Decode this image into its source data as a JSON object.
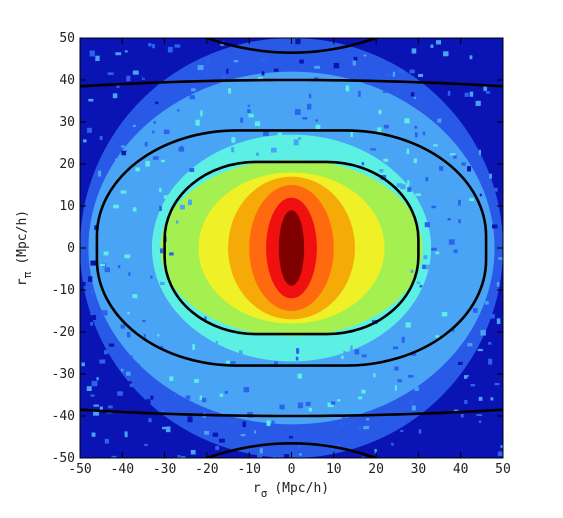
{
  "chart_data": {
    "type": "heatmap",
    "title": "",
    "xlabel": {
      "main": "r",
      "sub": "σ",
      "unit": "(Mpc/h)"
    },
    "ylabel": {
      "main": "r",
      "sub": "π",
      "unit": "(Mpc/h)"
    },
    "xlim": [
      -50,
      50
    ],
    "ylim": [
      -50,
      50
    ],
    "xticks": [
      -50,
      -40,
      -30,
      -20,
      -10,
      0,
      10,
      20,
      30,
      40,
      50
    ],
    "yticks": [
      -50,
      -40,
      -30,
      -20,
      -10,
      0,
      10,
      20,
      30,
      40,
      50
    ],
    "grid": false,
    "legend": "none",
    "colors": [
      "#0a14b4",
      "#2c62ec",
      "#4aa4f6",
      "#5cf0e4",
      "#a4f050",
      "#f0f026",
      "#f5aa08",
      "#ff6a10",
      "#f01010",
      "#800000"
    ],
    "filled_levels": [
      {
        "color": "#2c62ec",
        "sigma_extent": 50,
        "pi_extent": 50
      },
      {
        "color": "#4aa4f6",
        "sigma_extent": 48,
        "pi_extent": 42
      },
      {
        "color": "#5cf0e4",
        "sigma_extent": 33,
        "pi_extent": 27
      },
      {
        "color": "#a4f050",
        "sigma_extent": 31,
        "pi_extent": 21
      },
      {
        "color": "#f0f026",
        "sigma_extent": 22,
        "pi_extent": 18
      },
      {
        "color": "#f5aa08",
        "sigma_extent": 15,
        "pi_extent": 17
      },
      {
        "color": "#ff6a10",
        "sigma_extent": 10,
        "pi_extent": 15
      },
      {
        "color": "#f01010",
        "sigma_extent": 6,
        "pi_extent": 12
      },
      {
        "color": "#800000",
        "sigma_extent": 3,
        "pi_extent": 9
      }
    ],
    "model_contours": [
      {
        "name": "inner",
        "sigma_extent": 30,
        "pi_extent": 20.5
      },
      {
        "name": "middle",
        "sigma_extent": 46,
        "pi_extent": 28
      },
      {
        "name": "outer",
        "pi_at_sigma0": 40,
        "pi_at_sigma50": 38.5
      },
      {
        "name": "outermost",
        "pi_at_sigma0": 46.5,
        "pi_at_sigma20": 50
      }
    ]
  }
}
